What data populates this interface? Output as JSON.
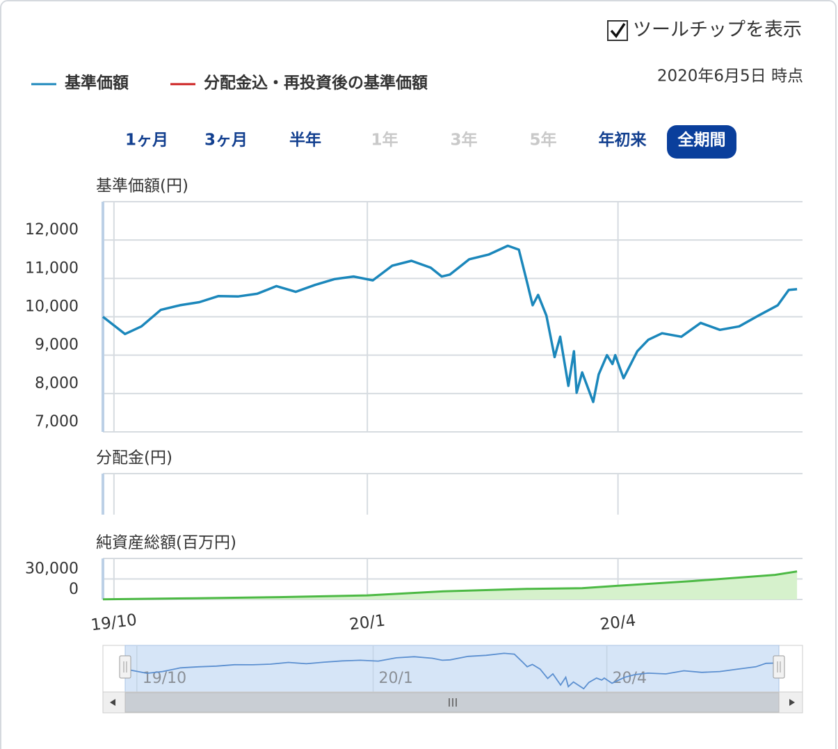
{
  "tooltip_toggle": {
    "label": "ツールチップを表示",
    "checked": true
  },
  "as_of": "2020年6月5日 時点",
  "range_buttons": [
    {
      "label": "1ヶ月",
      "state": "enabled"
    },
    {
      "label": "3ヶ月",
      "state": "enabled"
    },
    {
      "label": "半年",
      "state": "enabled"
    },
    {
      "label": "1年",
      "state": "disabled"
    },
    {
      "label": "3年",
      "state": "disabled"
    },
    {
      "label": "5年",
      "state": "disabled"
    },
    {
      "label": "年初来",
      "state": "enabled"
    },
    {
      "label": "全期間",
      "state": "selected"
    }
  ],
  "chart_data": [
    {
      "type": "line",
      "title": "基準価額(円)",
      "x": [
        -4,
        4,
        10,
        17,
        24,
        31,
        38,
        45,
        52,
        59,
        66,
        73,
        80,
        87,
        94,
        101,
        108,
        115,
        119,
        122,
        129,
        136,
        143,
        147,
        150,
        152,
        154,
        157,
        160,
        162,
        165,
        167,
        168,
        170,
        174,
        176,
        179,
        181,
        182,
        185,
        190,
        194,
        199,
        206,
        213,
        220,
        227,
        234,
        241,
        245,
        248
      ],
      "series": [
        {
          "name": "基準価額",
          "color": "#1b87bb",
          "values": [
            10000,
            9550,
            9750,
            10180,
            10300,
            10380,
            10540,
            10530,
            10600,
            10800,
            10650,
            10830,
            10980,
            11050,
            10950,
            11330,
            11460,
            11280,
            11050,
            11100,
            11500,
            11620,
            11850,
            11750,
            10900,
            10300,
            10570,
            10030,
            8950,
            9480,
            8200,
            9100,
            8020,
            8550,
            7780,
            8500,
            9000,
            8770,
            9000,
            8400,
            9100,
            9400,
            9570,
            9480,
            9840,
            9660,
            9750,
            10030,
            10300,
            10700,
            10720
          ]
        },
        {
          "name": "分配金込・再投資後の基準価額",
          "color": "#cc1f1f",
          "values": [
            null,
            null,
            null,
            null,
            null,
            null,
            null,
            null,
            null,
            null,
            null,
            null,
            null,
            null,
            null,
            null,
            null,
            null,
            null,
            null,
            null,
            null,
            null,
            null,
            null,
            null,
            null,
            null,
            null,
            null,
            null,
            null,
            null,
            null,
            null,
            null,
            null,
            null,
            null,
            null,
            null,
            null,
            null,
            null,
            null,
            null,
            null,
            null,
            null,
            null,
            null
          ]
        }
      ],
      "xlim": [
        -4,
        250
      ],
      "ylim": [
        7000,
        13000
      ],
      "yticks": [
        {
          "value": 7000,
          "label": "7,000"
        },
        {
          "value": 8000,
          "label": "8,000"
        },
        {
          "value": 9000,
          "label": "9,000"
        },
        {
          "value": 10000,
          "label": "10,000"
        },
        {
          "value": 11000,
          "label": "11,000"
        },
        {
          "value": 12000,
          "label": "12,000"
        }
      ],
      "grid": true
    },
    {
      "type": "bar",
      "title": "分配金(円)",
      "xlim": [
        -4,
        250
      ],
      "grid": true
    },
    {
      "type": "area",
      "title": "純資産総額(百万円)",
      "x": [
        -4,
        30,
        60,
        92,
        120,
        150,
        170,
        183,
        210,
        240,
        248
      ],
      "values": [
        300,
        1800,
        3500,
        6000,
        12000,
        15500,
        16500,
        20000,
        27000,
        36000,
        41000
      ],
      "color": "#4cb944",
      "fill": "#d6f1cc",
      "xlim": [
        -4,
        250
      ],
      "ylim": [
        0,
        60000
      ],
      "yticks": [
        0,
        {
          "value": 30000,
          "label": "30,000"
        }
      ],
      "xticks": [
        {
          "value": 0,
          "label": "19/10"
        },
        {
          "value": 92,
          "label": "20/1"
        },
        {
          "value": 183,
          "label": "20/4"
        }
      ],
      "grid": true
    }
  ]
}
